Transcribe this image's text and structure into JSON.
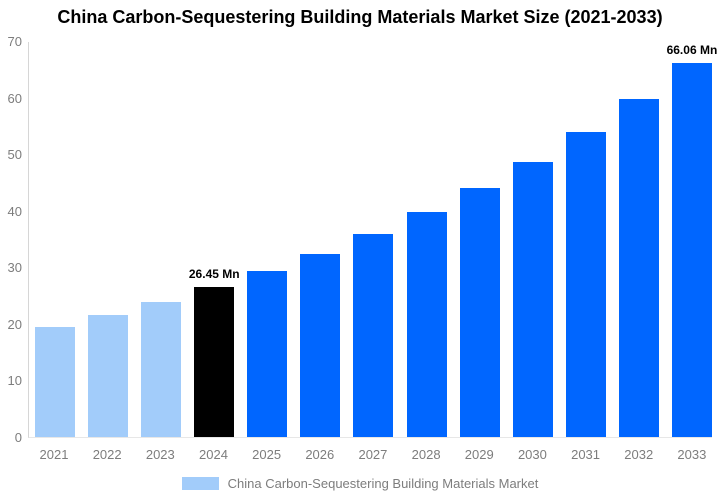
{
  "chart_data": {
    "type": "bar",
    "title": "China Carbon-Sequestering Building Materials Market Size (2021-2033)",
    "categories": [
      "2021",
      "2022",
      "2023",
      "2024",
      "2025",
      "2026",
      "2027",
      "2028",
      "2029",
      "2030",
      "2031",
      "2032",
      "2033"
    ],
    "values": [
      19.49,
      21.58,
      23.89,
      26.45,
      29.28,
      32.42,
      35.89,
      39.73,
      43.98,
      48.69,
      53.9,
      59.68,
      66.06
    ],
    "unit": "Mn",
    "annotations": [
      {
        "category": "2024",
        "text": "26.45 Mn"
      },
      {
        "category": "2033",
        "text": "66.06 Mn"
      }
    ],
    "colors": {
      "historical": "#a2ccfa",
      "base_year": "#000000",
      "forecast": "#0066ff"
    },
    "color_roles": [
      "historical",
      "historical",
      "historical",
      "base_year",
      "forecast",
      "forecast",
      "forecast",
      "forecast",
      "forecast",
      "forecast",
      "forecast",
      "forecast",
      "forecast"
    ],
    "xlabel": "",
    "ylabel": "",
    "ylim": [
      0,
      70
    ],
    "yticks": [
      0,
      10,
      20,
      30,
      40,
      50,
      60,
      70
    ],
    "grid": false,
    "legend": {
      "label": "China Carbon-Sequestering Building Materials Market",
      "swatch_color": "#a2ccfa",
      "position": "bottom"
    },
    "axis_color": "#d6d6d6",
    "tick_label_color": "#7d7d7d",
    "background_color": "#ffffff"
  }
}
